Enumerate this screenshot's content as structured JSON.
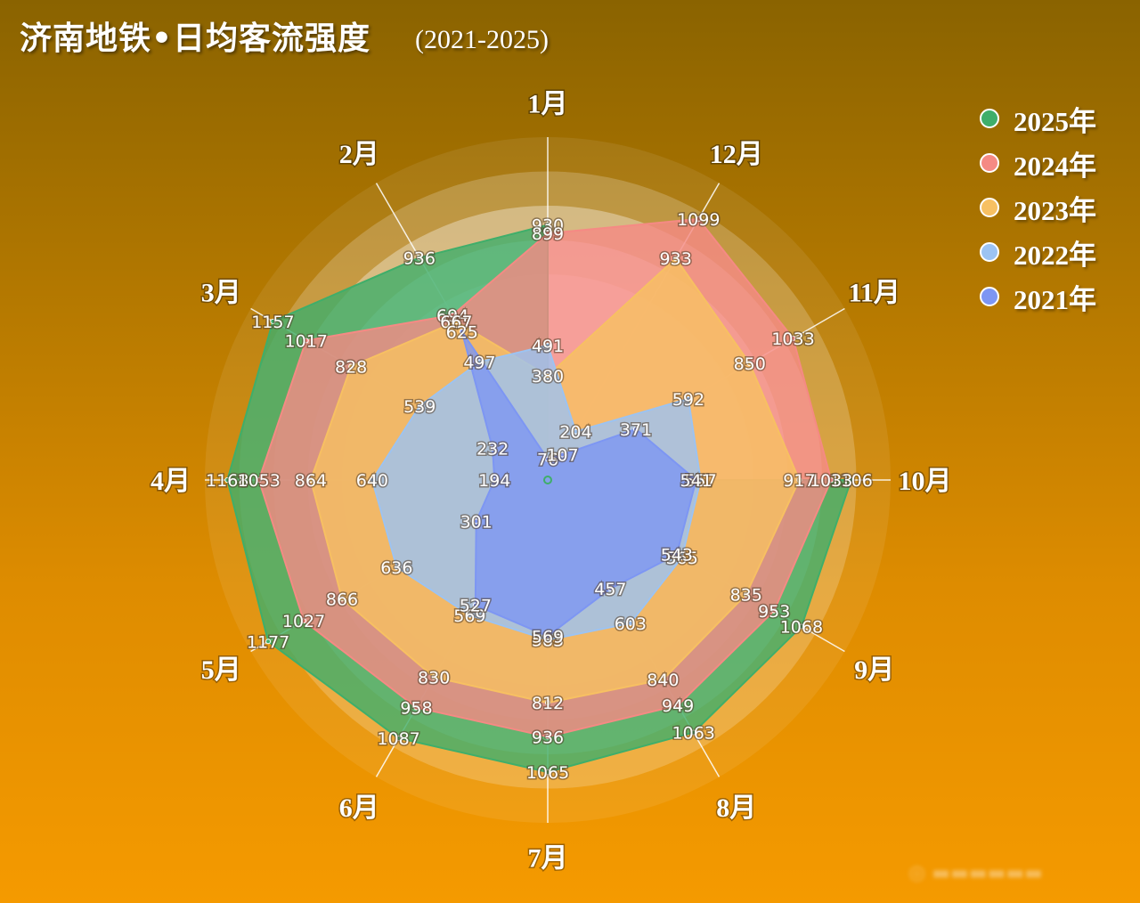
{
  "title": "济南地铁•日均客流强度",
  "subtitle": "(2021-2025)",
  "chart_data": {
    "type": "radar",
    "title": "济南地铁•日均客流强度",
    "subtitle": "(2021-2025)",
    "axes": [
      "1月",
      "12月",
      "11月",
      "10月",
      "9月",
      "8月",
      "7月",
      "6月",
      "5月",
      "4月",
      "3月",
      "2月"
    ],
    "r_range": [
      0,
      1250
    ],
    "legend_position": "top-right",
    "series": [
      {
        "name": "2025年",
        "color": "#3fae6a",
        "values": [
          930,
          null,
          null,
          1106,
          1068,
          1063,
          1065,
          1087,
          1177,
          1168,
          1157,
          936
        ]
      },
      {
        "name": "2024年",
        "color": "#f58a84",
        "values": [
          899,
          1099,
          1033,
          1033,
          953,
          949,
          936,
          958,
          1027,
          1053,
          1017,
          694
        ]
      },
      {
        "name": "2023年",
        "color": "#f7c062",
        "values": [
          380,
          933,
          850,
          917,
          835,
          840,
          812,
          830,
          866,
          864,
          828,
          667
        ]
      },
      {
        "name": "2022年",
        "color": "#9cc3f2",
        "values": [
          491,
          204,
          592,
          557,
          565,
          603,
          583,
          569,
          636,
          640,
          539,
          497
        ]
      },
      {
        "name": "2021年",
        "color": "#7d96f3",
        "values": [
          76,
          107,
          371,
          541,
          543,
          457,
          569,
          527,
          301,
          194,
          232,
          625
        ]
      }
    ]
  }
}
